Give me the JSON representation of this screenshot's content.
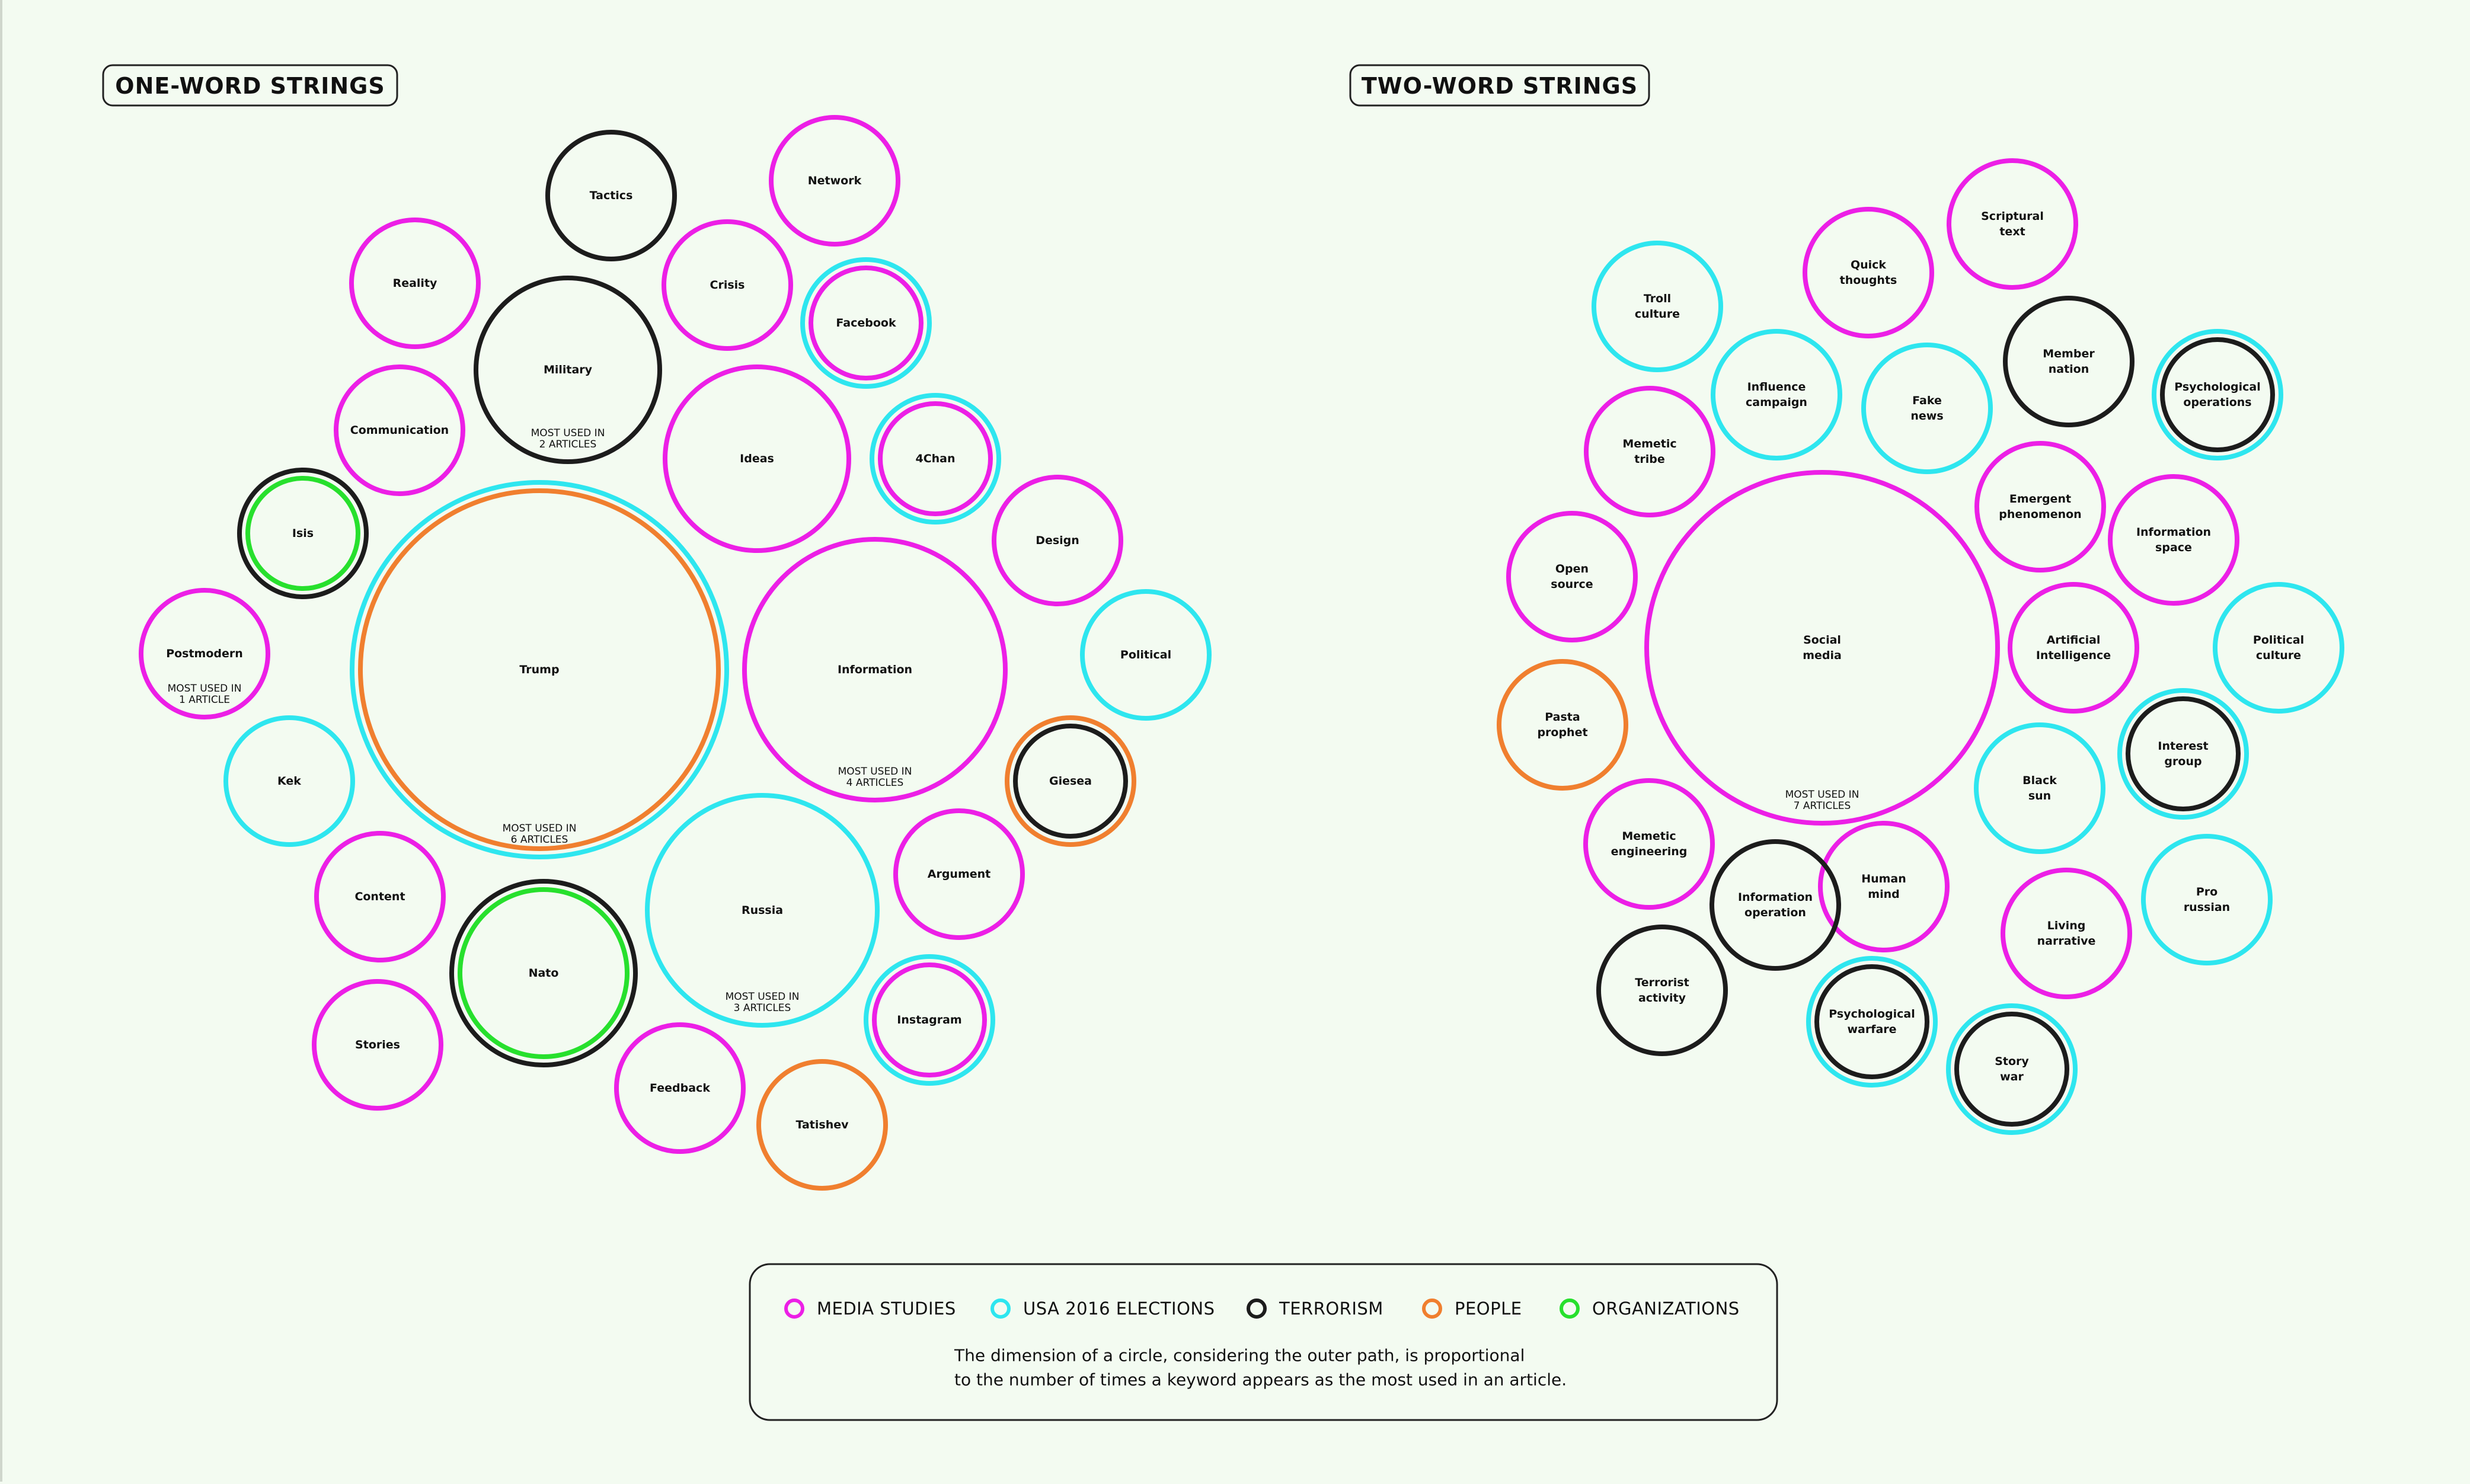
{
  "sections": [
    {
      "title": "ONE-WORD STRINGS"
    },
    {
      "title": "TWO-WORD STRINGS"
    }
  ],
  "colors": {
    "media_studies": "#ec1fe6",
    "usa_2016_elections": "#2ee6ef",
    "terrorism": "#1c1c1c",
    "people": "#f07f2f",
    "organizations": "#27e02d"
  },
  "one_word": [
    {
      "label": "Tactics",
      "rings": [
        "terrorism"
      ]
    },
    {
      "label": "Network",
      "rings": [
        "media_studies"
      ]
    },
    {
      "label": "Reality",
      "rings": [
        "media_studies"
      ]
    },
    {
      "label": "Military",
      "rings": [
        "terrorism"
      ],
      "note": [
        "MOST USED IN",
        "2 ARTICLES"
      ]
    },
    {
      "label": "Crisis",
      "rings": [
        "media_studies"
      ]
    },
    {
      "label": "Facebook",
      "rings": [
        "usa_2016_elections",
        "media_studies"
      ]
    },
    {
      "label": "Communication",
      "rings": [
        "media_studies"
      ]
    },
    {
      "label": "Ideas",
      "rings": [
        "media_studies"
      ]
    },
    {
      "label": "4Chan",
      "rings": [
        "usa_2016_elections",
        "media_studies"
      ]
    },
    {
      "label": "Isis",
      "rings": [
        "terrorism",
        "organizations"
      ]
    },
    {
      "label": "Design",
      "rings": [
        "media_studies"
      ]
    },
    {
      "label": "Postmodern",
      "rings": [
        "media_studies"
      ],
      "note": [
        "MOST USED IN",
        "1 ARTICLE"
      ]
    },
    {
      "label": "Trump",
      "rings": [
        "usa_2016_elections",
        "people"
      ],
      "note": [
        "MOST USED IN",
        "6 ARTICLES"
      ]
    },
    {
      "label": "Information",
      "rings": [
        "media_studies"
      ],
      "note": [
        "MOST USED IN",
        "4 ARTICLES"
      ]
    },
    {
      "label": "Political",
      "rings": [
        "usa_2016_elections"
      ]
    },
    {
      "label": "Kek",
      "rings": [
        "usa_2016_elections"
      ]
    },
    {
      "label": "Giesea",
      "rings": [
        "people",
        "terrorism"
      ]
    },
    {
      "label": "Content",
      "rings": [
        "media_studies"
      ]
    },
    {
      "label": "Argument",
      "rings": [
        "media_studies"
      ]
    },
    {
      "label": "Russia",
      "rings": [
        "usa_2016_elections"
      ],
      "note": [
        "MOST USED IN",
        "3 ARTICLES"
      ]
    },
    {
      "label": "Nato",
      "rings": [
        "terrorism",
        "organizations"
      ]
    },
    {
      "label": "Stories",
      "rings": [
        "media_studies"
      ]
    },
    {
      "label": "Instagram",
      "rings": [
        "usa_2016_elections",
        "media_studies"
      ]
    },
    {
      "label": "Feedback",
      "rings": [
        "media_studies"
      ]
    },
    {
      "label": "Tatishev",
      "rings": [
        "people"
      ]
    }
  ],
  "two_word": [
    {
      "label": [
        "Scriptural",
        "text"
      ],
      "rings": [
        "media_studies"
      ]
    },
    {
      "label": [
        "Quick",
        "thoughts"
      ],
      "rings": [
        "media_studies"
      ]
    },
    {
      "label": [
        "Troll",
        "culture"
      ],
      "rings": [
        "usa_2016_elections"
      ]
    },
    {
      "label": [
        "Member",
        "nation"
      ],
      "rings": [
        "terrorism"
      ]
    },
    {
      "label": [
        "Psychological",
        "operations"
      ],
      "rings": [
        "usa_2016_elections",
        "terrorism"
      ]
    },
    {
      "label": [
        "Influence",
        "campaign"
      ],
      "rings": [
        "usa_2016_elections"
      ]
    },
    {
      "label": [
        "Fake",
        "news"
      ],
      "rings": [
        "usa_2016_elections"
      ]
    },
    {
      "label": [
        "Memetic",
        "tribe"
      ],
      "rings": [
        "media_studies"
      ]
    },
    {
      "label": [
        "Emergent",
        "phenomenon"
      ],
      "rings": [
        "media_studies"
      ]
    },
    {
      "label": [
        "Information",
        "space"
      ],
      "rings": [
        "media_studies"
      ]
    },
    {
      "label": [
        "Open",
        "source"
      ],
      "rings": [
        "media_studies"
      ]
    },
    {
      "label": [
        "Social",
        "media"
      ],
      "rings": [
        "media_studies"
      ],
      "note": [
        "MOST USED IN",
        "7 ARTICLES"
      ]
    },
    {
      "label": [
        "Artificial",
        "Intelligence"
      ],
      "rings": [
        "media_studies"
      ]
    },
    {
      "label": [
        "Political",
        "culture"
      ],
      "rings": [
        "usa_2016_elections"
      ]
    },
    {
      "label": [
        "Pasta",
        "prophet"
      ],
      "rings": [
        "people"
      ]
    },
    {
      "label": [
        "Interest",
        "group"
      ],
      "rings": [
        "usa_2016_elections",
        "terrorism"
      ]
    },
    {
      "label": [
        "Black",
        "sun"
      ],
      "rings": [
        "usa_2016_elections"
      ]
    },
    {
      "label": [
        "Memetic",
        "engineering"
      ],
      "rings": [
        "media_studies"
      ]
    },
    {
      "label": [
        "Human",
        "mind"
      ],
      "rings": [
        "media_studies"
      ]
    },
    {
      "label": [
        "Information",
        "operation"
      ],
      "rings": [
        "terrorism"
      ]
    },
    {
      "label": [
        "Pro",
        "russian"
      ],
      "rings": [
        "usa_2016_elections"
      ]
    },
    {
      "label": [
        "Living",
        "narrative"
      ],
      "rings": [
        "media_studies"
      ]
    },
    {
      "label": [
        "Terrorist",
        "activity"
      ],
      "rings": [
        "terrorism"
      ]
    },
    {
      "label": [
        "Psychological",
        "warfare"
      ],
      "rings": [
        "usa_2016_elections",
        "terrorism"
      ]
    },
    {
      "label": [
        "Story",
        "war"
      ],
      "rings": [
        "usa_2016_elections",
        "terrorism"
      ]
    }
  ],
  "legend": {
    "items": [
      {
        "key": "media_studies",
        "label": "MEDIA STUDIES"
      },
      {
        "key": "usa_2016_elections",
        "label": "USA 2016 ELECTIONS"
      },
      {
        "key": "terrorism",
        "label": "TERRORISM"
      },
      {
        "key": "people",
        "label": "PEOPLE"
      },
      {
        "key": "organizations",
        "label": "ORGANIZATIONS"
      }
    ],
    "caption_line1": "The dimension of a circle, considering the outer path, is proportional",
    "caption_line2": "to the number of times a keyword appears as the most used in an article."
  }
}
